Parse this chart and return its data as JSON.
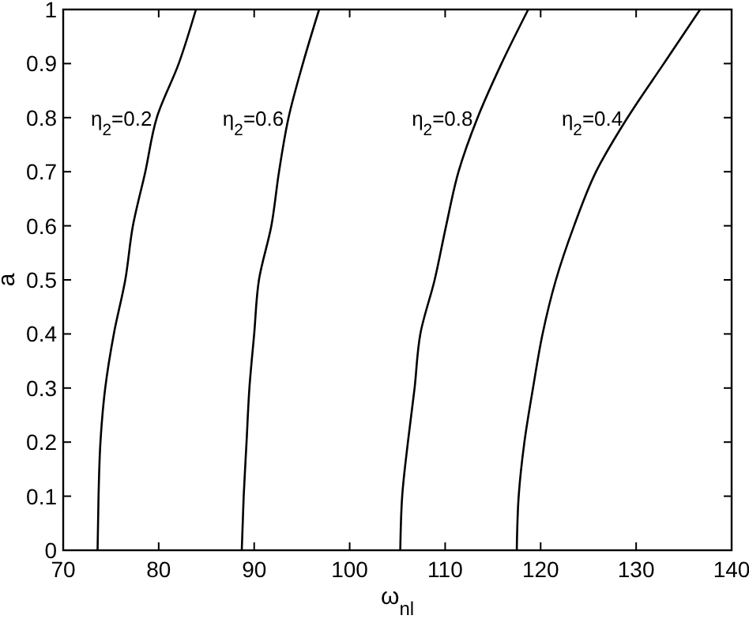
{
  "chart_data": {
    "type": "line",
    "xlabel": "ω$_{nl}$",
    "ylabel": "a",
    "xlim": [
      70,
      140
    ],
    "xticks": [
      70,
      80,
      90,
      100,
      110,
      120,
      130,
      140
    ],
    "ylim": [
      0,
      1
    ],
    "yticks": [
      0,
      0.1,
      0.2,
      0.3,
      0.4,
      0.5,
      0.6,
      0.7,
      0.8,
      0.9,
      1
    ],
    "grid": false,
    "marker": "none",
    "line_style": "solid",
    "series": [
      {
        "name": "η$_{2}$=0.2",
        "color": "#000000",
        "x": [
          73.6,
          73.7,
          73.9,
          74.4,
          75.3,
          76.5,
          77.3,
          78.6,
          79.8,
          82.1,
          83.9
        ],
        "values": [
          0,
          0.1,
          0.2,
          0.3,
          0.4,
          0.5,
          0.6,
          0.7,
          0.8,
          0.9,
          1
        ]
      },
      {
        "name": "η$_{2}$=0.6",
        "color": "#000000",
        "x": [
          88.7,
          88.9,
          89.2,
          89.5,
          90.0,
          90.5,
          91.8,
          92.6,
          93.6,
          95.1,
          96.8
        ],
        "values": [
          0,
          0.1,
          0.2,
          0.3,
          0.4,
          0.5,
          0.6,
          0.7,
          0.8,
          0.9,
          1
        ]
      },
      {
        "name": "η$_{2}$=0.8",
        "color": "#000000",
        "x": [
          105.3,
          105.5,
          106.1,
          106.8,
          107.4,
          108.9,
          110.1,
          111.4,
          113.4,
          115.9,
          118.7
        ],
        "values": [
          0,
          0.1,
          0.2,
          0.3,
          0.4,
          0.5,
          0.6,
          0.7,
          0.8,
          0.9,
          1
        ]
      },
      {
        "name": "η$_{2}$=0.4",
        "color": "#000000",
        "x": [
          117.5,
          117.7,
          118.3,
          119.2,
          120.2,
          121.6,
          123.5,
          125.8,
          129.1,
          132.9,
          136.7
        ],
        "values": [
          0,
          0.1,
          0.2,
          0.3,
          0.4,
          0.5,
          0.6,
          0.7,
          0.8,
          0.9,
          1
        ]
      }
    ]
  }
}
